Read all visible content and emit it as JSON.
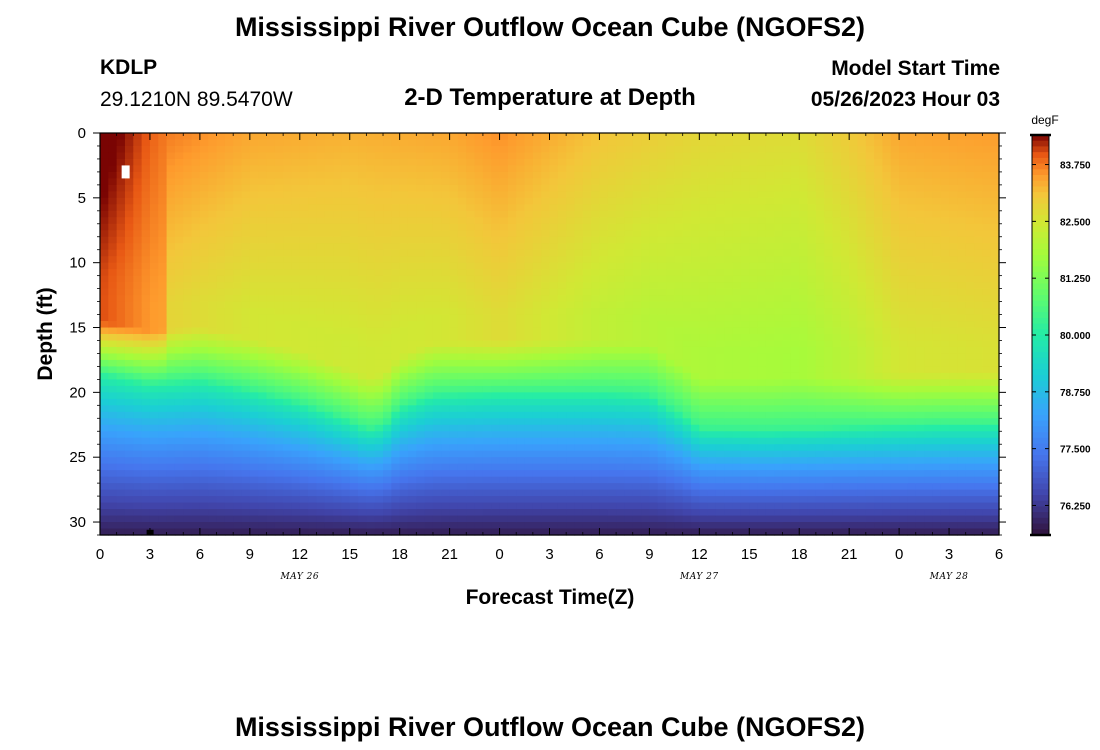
{
  "header": {
    "title": "Mississippi River Outflow Ocean Cube (NGOFS2)",
    "station": "KDLP",
    "coords": "29.1210N  89.5470W",
    "plot_title": "2-D Temperature at Depth",
    "model_start_label": "Model Start Time",
    "model_start_value": "05/26/2023 Hour 03"
  },
  "footer": {
    "title": "Mississippi River Outflow Ocean Cube (NGOFS2)"
  },
  "chart_data": {
    "type": "heatmap",
    "title": "2-D Temperature at Depth",
    "xlabel": "Forecast Time(Z)",
    "ylabel": "Depth (ft)",
    "x_range_hours": [
      0,
      54
    ],
    "y_range": [
      0,
      31
    ],
    "x_ticks": [
      "0",
      "3",
      "6",
      "9",
      "12",
      "15",
      "18",
      "21",
      "0",
      "3",
      "6",
      "9",
      "12",
      "15",
      "18",
      "21",
      "0",
      "3",
      "6"
    ],
    "y_ticks": [
      "0",
      "5",
      "10",
      "15",
      "20",
      "25",
      "30"
    ],
    "y_tick_values": [
      0,
      5,
      10,
      15,
      20,
      25,
      30
    ],
    "date_labels": [
      {
        "text": "MAY 26",
        "hour": 12
      },
      {
        "text": "MAY 27",
        "hour": 36
      },
      {
        "text": "MAY 28",
        "hour": 51
      }
    ],
    "colorbar": {
      "unit": "degF",
      "range": [
        75.6,
        84.4
      ],
      "ticks": [
        "83.750",
        "82.500",
        "81.250",
        "80.000",
        "78.750",
        "77.500",
        "76.250"
      ],
      "tick_values": [
        83.75,
        82.5,
        81.25,
        80.0,
        78.75,
        77.5,
        76.25
      ]
    },
    "thermocline_depth_ft": {
      "hours": [
        0,
        3,
        6,
        9,
        12,
        15,
        16,
        17,
        18,
        20,
        24,
        30,
        33,
        35,
        36,
        40,
        45,
        48,
        51,
        54
      ],
      "values": [
        16.5,
        17.3,
        17.0,
        17.8,
        18.8,
        20.2,
        20.8,
        20.6,
        19.2,
        18.2,
        18.0,
        18.0,
        18.2,
        19.8,
        20.8,
        20.9,
        20.7,
        20.6,
        20.5,
        20.5
      ]
    },
    "surface_temp_degF": {
      "hours": [
        0,
        3,
        9,
        15,
        21,
        24,
        30,
        36,
        42,
        45,
        48,
        54
      ],
      "values": [
        84.3,
        83.8,
        83.4,
        83.3,
        83.4,
        83.6,
        83.1,
        82.8,
        82.7,
        83.0,
        83.4,
        83.5
      ]
    },
    "bottom_temp_degF": 75.8
  }
}
